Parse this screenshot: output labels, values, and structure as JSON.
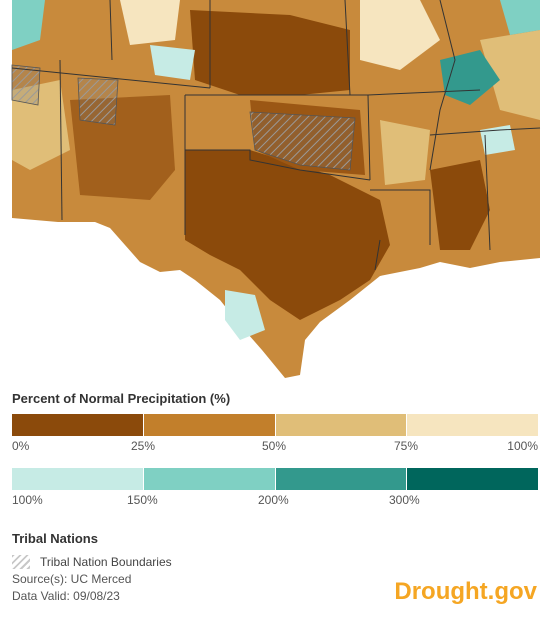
{
  "legend": {
    "title": "Percent of Normal Precipitation (%)",
    "dry": {
      "colors": [
        "#8b4a0b",
        "#c27f2b",
        "#e0be78",
        "#f6e5bf"
      ],
      "ticks": [
        "0%",
        "25%",
        "50%",
        "75%",
        "100%"
      ]
    },
    "wet": {
      "colors": [
        "#c6ebe5",
        "#7fd0c3",
        "#33998d",
        "#00665c"
      ],
      "ticks": [
        "100%",
        "150%",
        "200%",
        "300%"
      ]
    }
  },
  "tribal": {
    "title": "Tribal Nations",
    "boundary_label": "Tribal Nation Boundaries"
  },
  "source": "Source(s): UC Merced",
  "valid": "Data Valid: 09/08/23",
  "brand": "Drought.gov"
}
